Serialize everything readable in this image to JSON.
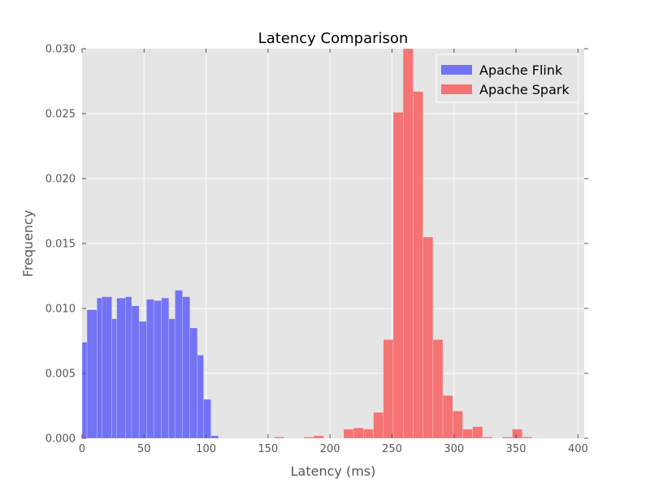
{
  "chart_data": {
    "type": "bar",
    "title": "Latency Comparison",
    "xlabel": "Latency (ms)",
    "ylabel": "Frequency",
    "xlim": [
      0,
      405
    ],
    "ylim": [
      0,
      0.03
    ],
    "xticks": [
      0,
      50,
      100,
      150,
      200,
      250,
      300,
      350,
      400
    ],
    "yticks": [
      0.0,
      0.005,
      0.01,
      0.015,
      0.02,
      0.025,
      0.03
    ],
    "ytick_labels": [
      "0.000",
      "0.005",
      "0.010",
      "0.015",
      "0.020",
      "0.025",
      "0.030"
    ],
    "grid": true,
    "legend_position": "top-right",
    "colors": {
      "plot_bg": "#e5e5e5",
      "grid": "#ffffff",
      "flink": "#7373f5",
      "spark": "#f57373"
    },
    "series": [
      {
        "name": "Apache Flink",
        "color": "#7373f5",
        "bins": [
          {
            "x0": 0,
            "x1": 4,
            "v": 0.0074
          },
          {
            "x0": 4,
            "x1": 12,
            "v": 0.0099
          },
          {
            "x0": 12,
            "x1": 16,
            "v": 0.0108
          },
          {
            "x0": 16,
            "x1": 24,
            "v": 0.0109
          },
          {
            "x0": 24,
            "x1": 28,
            "v": 0.0092
          },
          {
            "x0": 28,
            "x1": 35,
            "v": 0.0108
          },
          {
            "x0": 35,
            "x1": 40,
            "v": 0.0109
          },
          {
            "x0": 40,
            "x1": 46,
            "v": 0.0102
          },
          {
            "x0": 46,
            "x1": 52,
            "v": 0.009
          },
          {
            "x0": 52,
            "x1": 58,
            "v": 0.0107
          },
          {
            "x0": 58,
            "x1": 64,
            "v": 0.0106
          },
          {
            "x0": 64,
            "x1": 70,
            "v": 0.0108
          },
          {
            "x0": 70,
            "x1": 75,
            "v": 0.0092
          },
          {
            "x0": 75,
            "x1": 81,
            "v": 0.0114
          },
          {
            "x0": 81,
            "x1": 87,
            "v": 0.0109
          },
          {
            "x0": 87,
            "x1": 93,
            "v": 0.0085
          },
          {
            "x0": 93,
            "x1": 98,
            "v": 0.0064
          },
          {
            "x0": 98,
            "x1": 104,
            "v": 0.003
          },
          {
            "x0": 104,
            "x1": 110,
            "v": 0.0002
          }
        ]
      },
      {
        "name": "Apache Spark",
        "color": "#f57373",
        "bins": [
          {
            "x0": 155,
            "x1": 163,
            "v": 0.0001
          },
          {
            "x0": 179,
            "x1": 187,
            "v": 0.0001
          },
          {
            "x0": 187,
            "x1": 195,
            "v": 0.0002
          },
          {
            "x0": 211,
            "x1": 219,
            "v": 0.0007
          },
          {
            "x0": 219,
            "x1": 227,
            "v": 0.0008
          },
          {
            "x0": 227,
            "x1": 235,
            "v": 0.0007
          },
          {
            "x0": 235,
            "x1": 243,
            "v": 0.002
          },
          {
            "x0": 243,
            "x1": 251,
            "v": 0.0076
          },
          {
            "x0": 251,
            "x1": 259,
            "v": 0.0251
          },
          {
            "x0": 259,
            "x1": 267,
            "v": 0.03
          },
          {
            "x0": 267,
            "x1": 275,
            "v": 0.0267
          },
          {
            "x0": 275,
            "x1": 283,
            "v": 0.0155
          },
          {
            "x0": 283,
            "x1": 291,
            "v": 0.0076
          },
          {
            "x0": 291,
            "x1": 299,
            "v": 0.0033
          },
          {
            "x0": 299,
            "x1": 307,
            "v": 0.0021
          },
          {
            "x0": 307,
            "x1": 315,
            "v": 0.0007
          },
          {
            "x0": 315,
            "x1": 323,
            "v": 0.0009
          },
          {
            "x0": 323,
            "x1": 331,
            "v": 0.0001
          },
          {
            "x0": 339,
            "x1": 347,
            "v": 0.0001
          },
          {
            "x0": 347,
            "x1": 355,
            "v": 0.0007
          },
          {
            "x0": 355,
            "x1": 363,
            "v": 0.0001
          }
        ]
      }
    ]
  }
}
